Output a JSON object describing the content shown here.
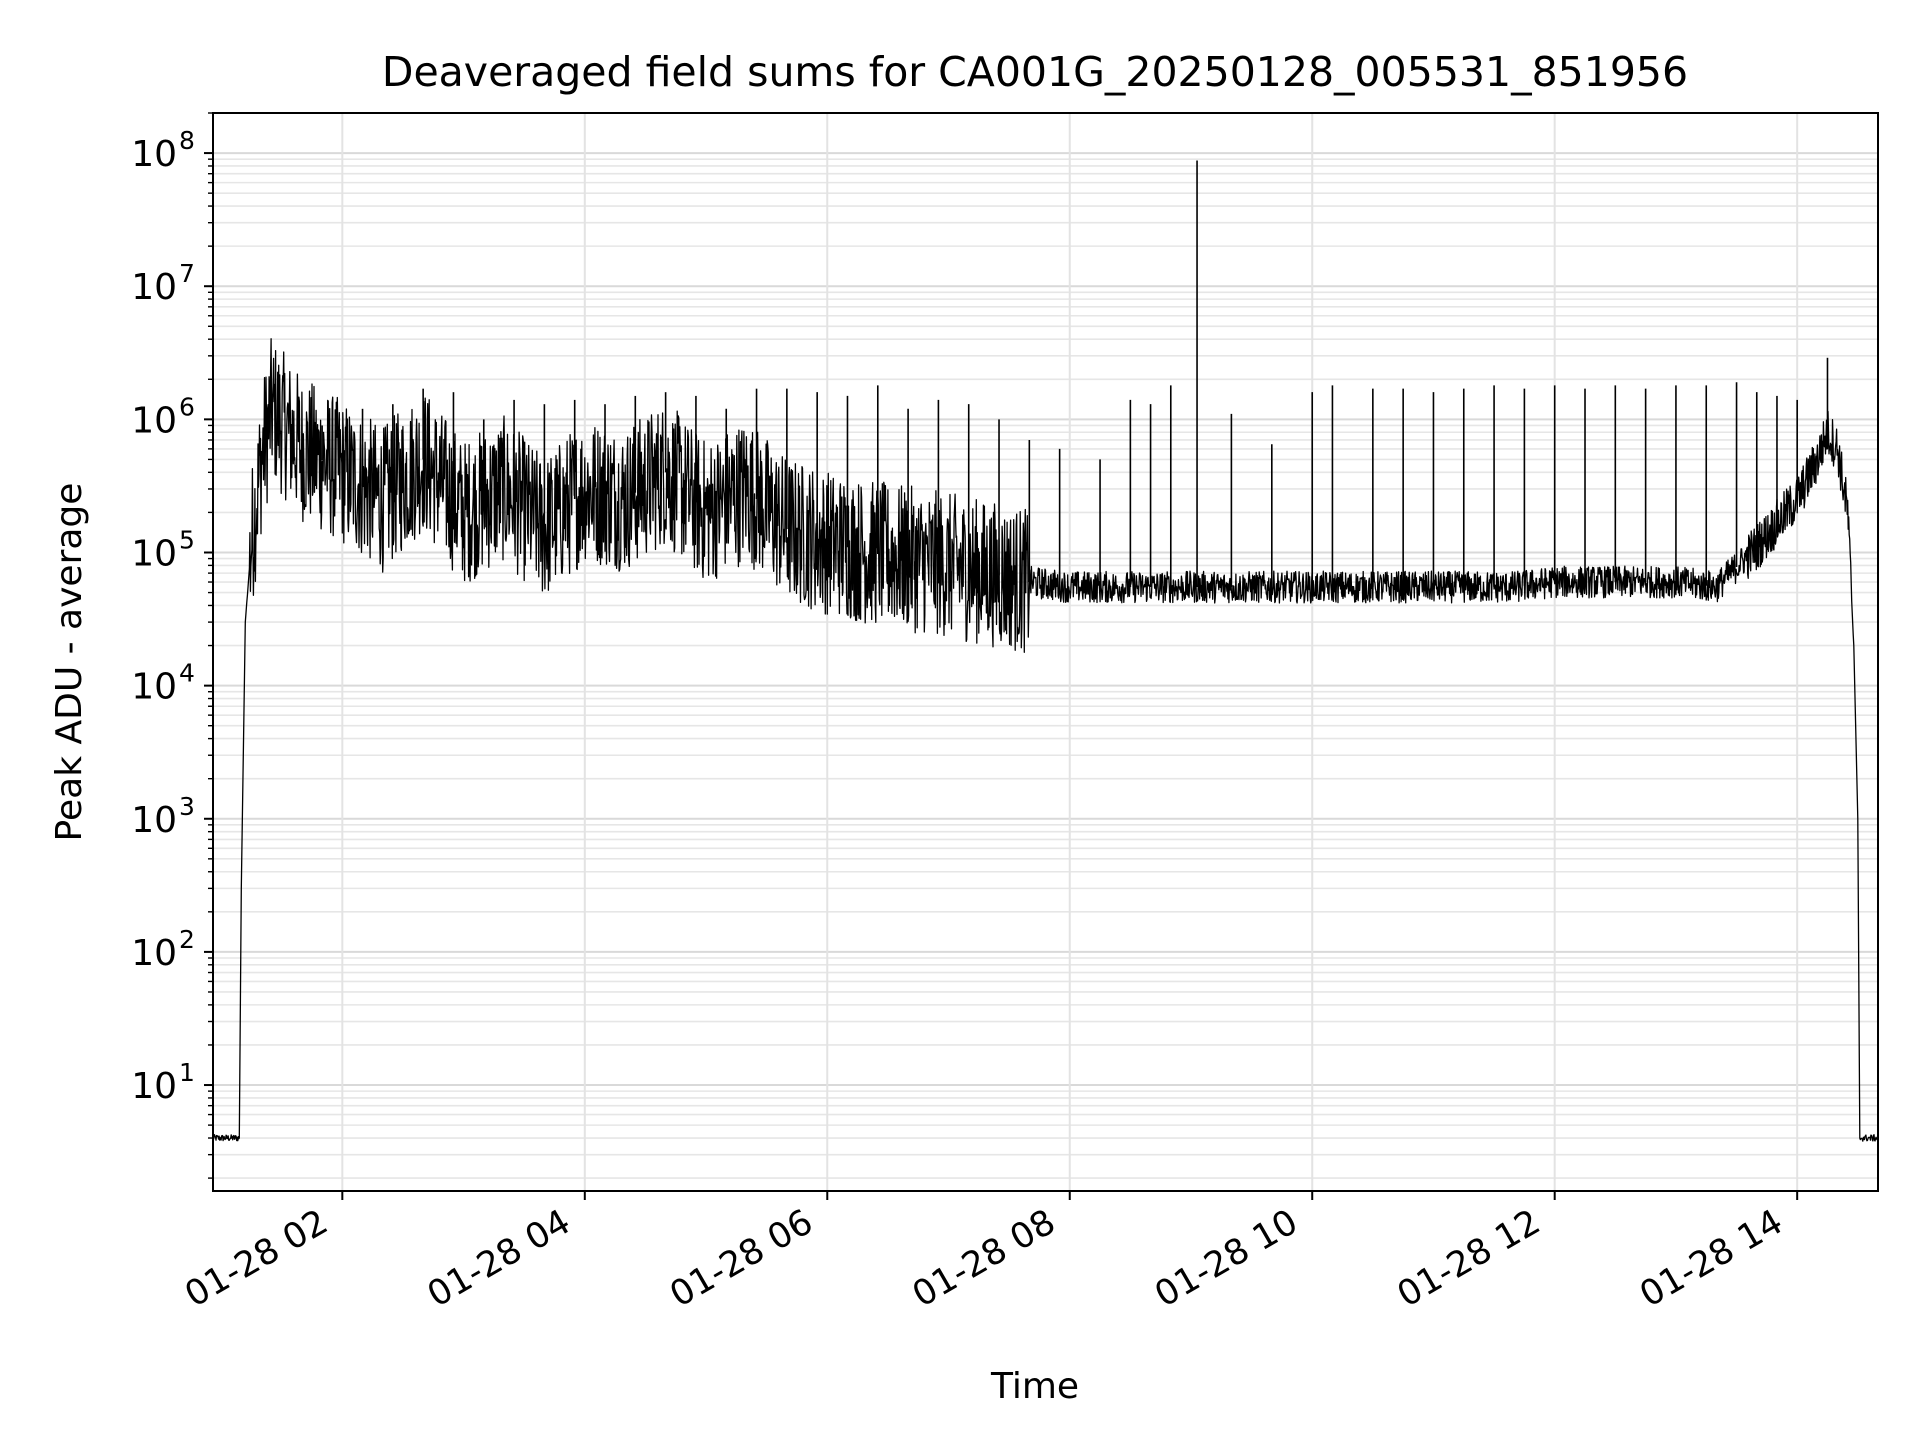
{
  "chart_data": {
    "type": "line",
    "title": "Deaveraged field sums for CA001G_20250128_005531_851956",
    "xlabel": "Time",
    "ylabel": "Peak ADU - average",
    "yscale": "log",
    "grid": true,
    "xlim": [
      "2025-01-28T00:56:00",
      "2025-01-28T14:40:00"
    ],
    "ylim": [
      1.6,
      200000000.0
    ],
    "x_ticks": [
      {
        "t": "2025-01-28T02:00:00",
        "label": "01-28 02"
      },
      {
        "t": "2025-01-28T04:00:00",
        "label": "01-28 04"
      },
      {
        "t": "2025-01-28T06:00:00",
        "label": "01-28 06"
      },
      {
        "t": "2025-01-28T08:00:00",
        "label": "01-28 08"
      },
      {
        "t": "2025-01-28T10:00:00",
        "label": "01-28 10"
      },
      {
        "t": "2025-01-28T12:00:00",
        "label": "01-28 12"
      },
      {
        "t": "2025-01-28T14:00:00",
        "label": "01-28 14"
      }
    ],
    "y_ticks": [
      {
        "value": 10,
        "base": "10",
        "exp": "1"
      },
      {
        "value": 100,
        "base": "10",
        "exp": "2"
      },
      {
        "value": 1000,
        "base": "10",
        "exp": "3"
      },
      {
        "value": 10000,
        "base": "10",
        "exp": "4"
      },
      {
        "value": 100000,
        "base": "10",
        "exp": "5"
      },
      {
        "value": 1000000,
        "base": "10",
        "exp": "6"
      },
      {
        "value": 10000000,
        "base": "10",
        "exp": "7"
      },
      {
        "value": 100000000,
        "base": "10",
        "exp": "8"
      }
    ],
    "line_color": "#000000",
    "series": [
      {
        "t": [
          "00:56",
          "01:08",
          "01:09",
          "01:10",
          "01:12",
          "01:15",
          "01:20",
          "01:25",
          "01:40",
          "02:00",
          "02:20",
          "02:40",
          "03:00",
          "03:20",
          "03:40",
          "04:00",
          "04:20",
          "04:40",
          "05:00",
          "05:20",
          "05:40",
          "06:00",
          "06:20",
          "06:40",
          "07:00",
          "07:20",
          "07:40",
          "08:00",
          "08:20",
          "08:40",
          "09:00",
          "09:20",
          "09:40",
          "10:00",
          "10:20",
          "10:40",
          "11:00",
          "11:20",
          "11:40",
          "12:00",
          "12:20",
          "12:40",
          "13:00",
          "13:20",
          "13:40",
          "14:00",
          "14:10",
          "14:15",
          "14:20",
          "14:25",
          "14:28",
          "14:30",
          "14:31",
          "14:32",
          "14:40"
        ],
        "values": [
          4,
          4,
          4,
          300,
          30000,
          120000,
          500000,
          1200000,
          600000,
          400000,
          250000,
          500000,
          200000,
          300000,
          150000,
          300000,
          250000,
          400000,
          200000,
          300000,
          150000,
          120000,
          100000,
          90000,
          80000,
          70000,
          60000,
          55000,
          55000,
          55000,
          55000,
          55000,
          55000,
          55000,
          55000,
          55000,
          55000,
          55000,
          55000,
          60000,
          60000,
          60000,
          60000,
          55000,
          110000,
          250000,
          500000,
          800000,
          600000,
          200000,
          20000,
          1000,
          4,
          4,
          4
        ]
      }
    ],
    "spikes": [
      {
        "t": "01:22",
        "value": 1500000
      },
      {
        "t": "01:50",
        "value": 900000
      },
      {
        "t": "02:10",
        "value": 1200000
      },
      {
        "t": "02:25",
        "value": 1300000
      },
      {
        "t": "02:40",
        "value": 1700000
      },
      {
        "t": "02:55",
        "value": 1600000
      },
      {
        "t": "03:10",
        "value": 1000000
      },
      {
        "t": "03:25",
        "value": 1400000
      },
      {
        "t": "03:40",
        "value": 1300000
      },
      {
        "t": "03:55",
        "value": 1400000
      },
      {
        "t": "04:10",
        "value": 1300000
      },
      {
        "t": "04:25",
        "value": 1500000
      },
      {
        "t": "04:40",
        "value": 1600000
      },
      {
        "t": "04:55",
        "value": 1500000
      },
      {
        "t": "05:10",
        "value": 1200000
      },
      {
        "t": "05:25",
        "value": 1700000
      },
      {
        "t": "05:40",
        "value": 1700000
      },
      {
        "t": "05:55",
        "value": 1600000
      },
      {
        "t": "06:10",
        "value": 1500000
      },
      {
        "t": "06:25",
        "value": 1800000
      },
      {
        "t": "06:40",
        "value": 1200000
      },
      {
        "t": "06:55",
        "value": 1400000
      },
      {
        "t": "07:10",
        "value": 1300000
      },
      {
        "t": "07:25",
        "value": 1000000
      },
      {
        "t": "07:40",
        "value": 700000
      },
      {
        "t": "07:55",
        "value": 600000
      },
      {
        "t": "08:15",
        "value": 500000
      },
      {
        "t": "08:30",
        "value": 1400000
      },
      {
        "t": "08:40",
        "value": 1300000
      },
      {
        "t": "08:50",
        "value": 1800000
      },
      {
        "t": "09:03",
        "value": 88000000
      },
      {
        "t": "09:20",
        "value": 1100000
      },
      {
        "t": "09:40",
        "value": 650000
      },
      {
        "t": "10:00",
        "value": 1600000
      },
      {
        "t": "10:10",
        "value": 1800000
      },
      {
        "t": "10:30",
        "value": 1700000
      },
      {
        "t": "10:45",
        "value": 1700000
      },
      {
        "t": "11:00",
        "value": 1600000
      },
      {
        "t": "11:15",
        "value": 1700000
      },
      {
        "t": "11:30",
        "value": 1800000
      },
      {
        "t": "11:45",
        "value": 1700000
      },
      {
        "t": "12:00",
        "value": 1800000
      },
      {
        "t": "12:15",
        "value": 1700000
      },
      {
        "t": "12:30",
        "value": 1800000
      },
      {
        "t": "12:45",
        "value": 1700000
      },
      {
        "t": "13:00",
        "value": 1800000
      },
      {
        "t": "13:15",
        "value": 1800000
      },
      {
        "t": "13:30",
        "value": 1900000
      },
      {
        "t": "13:40",
        "value": 1600000
      },
      {
        "t": "13:50",
        "value": 1500000
      },
      {
        "t": "14:00",
        "value": 1400000
      },
      {
        "t": "14:15",
        "value": 2900000
      }
    ]
  }
}
